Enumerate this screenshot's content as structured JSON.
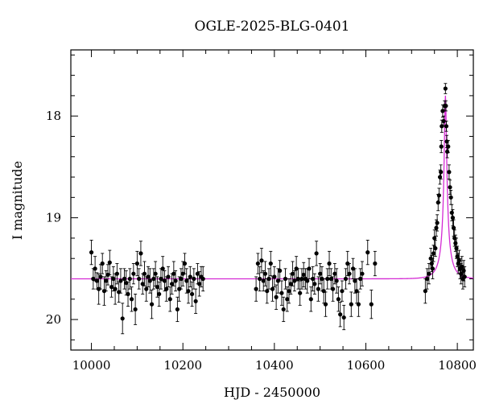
{
  "chart_data": {
    "type": "scatter",
    "title": "OGLE-2025-BLG-0401",
    "xlabel": "HJD - 2450000",
    "ylabel": "I magnitude",
    "xlim": [
      9955,
      10835
    ],
    "ylim": [
      20.3,
      17.35
    ],
    "y_inverted": true,
    "grid": false,
    "x_ticks": [
      10000,
      10200,
      10400,
      10600,
      10800
    ],
    "x_tick_labels": [
      "10000",
      "10200",
      "10400",
      "10600",
      "10800"
    ],
    "y_ticks": [
      18,
      19,
      20
    ],
    "y_tick_labels": [
      "18",
      "19",
      "20"
    ],
    "model_color": "#d42bd4",
    "point_color": "#000000",
    "model": {
      "name": "",
      "baseline": 19.6,
      "t0": 10774,
      "peak": 17.8,
      "tE": 24.4,
      "u0": 0.11
    },
    "series": [
      {
        "name": "",
        "points": [
          [
            10000,
            19.34,
            0.12
          ],
          [
            10004,
            19.6,
            0.1
          ],
          [
            10008,
            19.5,
            0.12
          ],
          [
            10012,
            19.62,
            0.08
          ],
          [
            10016,
            19.7,
            0.15
          ],
          [
            10020,
            19.58,
            0.12
          ],
          [
            10024,
            19.45,
            0.1
          ],
          [
            10028,
            19.72,
            0.14
          ],
          [
            10032,
            19.62,
            0.1
          ],
          [
            10036,
            19.56,
            0.1
          ],
          [
            10040,
            19.44,
            0.12
          ],
          [
            10044,
            19.68,
            0.1
          ],
          [
            10048,
            19.6,
            0.12
          ],
          [
            10052,
            19.7,
            0.15
          ],
          [
            10056,
            19.55,
            0.1
          ],
          [
            10060,
            19.73,
            0.1
          ],
          [
            10064,
            19.62,
            0.12
          ],
          [
            10068,
            19.99,
            0.15
          ],
          [
            10072,
            19.6,
            0.1
          ],
          [
            10076,
            19.64,
            0.12
          ],
          [
            10080,
            19.75,
            0.12
          ],
          [
            10084,
            19.6,
            0.1
          ],
          [
            10088,
            19.8,
            0.12
          ],
          [
            10092,
            19.55,
            0.1
          ],
          [
            10096,
            19.9,
            0.15
          ],
          [
            10100,
            19.45,
            0.12
          ],
          [
            10104,
            19.6,
            0.1
          ],
          [
            10108,
            19.35,
            0.12
          ],
          [
            10112,
            19.65,
            0.1
          ],
          [
            10116,
            19.55,
            0.12
          ],
          [
            10120,
            19.7,
            0.12
          ],
          [
            10124,
            19.58,
            0.1
          ],
          [
            10128,
            19.62,
            0.12
          ],
          [
            10132,
            19.85,
            0.14
          ],
          [
            10136,
            19.6,
            0.1
          ],
          [
            10140,
            19.55,
            0.12
          ],
          [
            10144,
            19.68,
            0.1
          ],
          [
            10148,
            19.75,
            0.12
          ],
          [
            10152,
            19.6,
            0.1
          ],
          [
            10156,
            19.5,
            0.12
          ],
          [
            10160,
            19.62,
            0.1
          ],
          [
            10164,
            19.7,
            0.12
          ],
          [
            10168,
            19.58,
            0.1
          ],
          [
            10172,
            19.8,
            0.12
          ],
          [
            10176,
            19.65,
            0.1
          ],
          [
            10180,
            19.55,
            0.12
          ],
          [
            10184,
            19.62,
            0.1
          ],
          [
            10188,
            19.9,
            0.12
          ],
          [
            10192,
            19.7,
            0.12
          ],
          [
            10196,
            19.6,
            0.1
          ],
          [
            10200,
            19.55,
            0.12
          ],
          [
            10204,
            19.45,
            0.1
          ],
          [
            10208,
            19.62,
            0.12
          ],
          [
            10212,
            19.72,
            0.12
          ],
          [
            10216,
            19.58,
            0.1
          ],
          [
            10220,
            19.75,
            0.12
          ],
          [
            10224,
            19.6,
            0.1
          ],
          [
            10228,
            19.82,
            0.12
          ],
          [
            10232,
            19.55,
            0.1
          ],
          [
            10236,
            19.65,
            0.12
          ],
          [
            10240,
            19.58,
            0.1
          ],
          [
            10244,
            19.6,
            0.12
          ],
          [
            10360,
            19.7,
            0.12
          ],
          [
            10364,
            19.45,
            0.1
          ],
          [
            10368,
            19.6,
            0.12
          ],
          [
            10372,
            19.42,
            0.12
          ],
          [
            10376,
            19.62,
            0.1
          ],
          [
            10380,
            19.55,
            0.12
          ],
          [
            10384,
            19.72,
            0.12
          ],
          [
            10388,
            19.6,
            0.1
          ],
          [
            10392,
            19.45,
            0.12
          ],
          [
            10396,
            19.7,
            0.12
          ],
          [
            10400,
            19.58,
            0.1
          ],
          [
            10404,
            19.78,
            0.12
          ],
          [
            10408,
            19.62,
            0.12
          ],
          [
            10412,
            19.52,
            0.1
          ],
          [
            10416,
            19.74,
            0.12
          ],
          [
            10420,
            19.9,
            0.12
          ],
          [
            10424,
            19.6,
            0.1
          ],
          [
            10428,
            19.8,
            0.12
          ],
          [
            10432,
            19.72,
            0.12
          ],
          [
            10436,
            19.65,
            0.1
          ],
          [
            10440,
            19.55,
            0.12
          ],
          [
            10444,
            19.62,
            0.1
          ],
          [
            10448,
            19.5,
            0.12
          ],
          [
            10452,
            19.6,
            0.1
          ],
          [
            10456,
            19.74,
            0.12
          ],
          [
            10460,
            19.6,
            0.1
          ],
          [
            10464,
            19.56,
            0.12
          ],
          [
            10468,
            19.6,
            0.1
          ],
          [
            10472,
            19.62,
            0.12
          ],
          [
            10476,
            19.5,
            0.1
          ],
          [
            10480,
            19.8,
            0.12
          ],
          [
            10484,
            19.6,
            0.12
          ],
          [
            10488,
            19.65,
            0.1
          ],
          [
            10492,
            19.35,
            0.12
          ],
          [
            10496,
            19.7,
            0.12
          ],
          [
            10500,
            19.55,
            0.1
          ],
          [
            10504,
            19.6,
            0.12
          ],
          [
            10508,
            19.72,
            0.12
          ],
          [
            10512,
            19.85,
            0.12
          ],
          [
            10516,
            19.6,
            0.1
          ],
          [
            10520,
            19.45,
            0.12
          ],
          [
            10524,
            19.6,
            0.1
          ],
          [
            10528,
            19.7,
            0.12
          ],
          [
            10532,
            19.55,
            0.1
          ],
          [
            10536,
            19.62,
            0.12
          ],
          [
            10540,
            19.8,
            0.12
          ],
          [
            10544,
            19.95,
            0.12
          ],
          [
            10548,
            19.72,
            0.1
          ],
          [
            10552,
            19.98,
            0.12
          ],
          [
            10556,
            19.6,
            0.1
          ],
          [
            10560,
            19.45,
            0.12
          ],
          [
            10564,
            19.55,
            0.1
          ],
          [
            10568,
            19.85,
            0.12
          ],
          [
            10572,
            19.5,
            0.1
          ],
          [
            10576,
            19.62,
            0.12
          ],
          [
            10580,
            19.72,
            0.12
          ],
          [
            10584,
            19.85,
            0.12
          ],
          [
            10588,
            19.6,
            0.1
          ],
          [
            10592,
            19.55,
            0.12
          ],
          [
            10604,
            19.34,
            0.12
          ],
          [
            10612,
            19.85,
            0.14
          ],
          [
            10620,
            19.45,
            0.12
          ],
          [
            10730,
            19.72,
            0.12
          ],
          [
            10734,
            19.6,
            0.1
          ],
          [
            10738,
            19.55,
            0.1
          ],
          [
            10742,
            19.4,
            0.1
          ],
          [
            10744,
            19.45,
            0.08
          ],
          [
            10746,
            19.5,
            0.1
          ],
          [
            10748,
            19.35,
            0.08
          ],
          [
            10750,
            19.2,
            0.08
          ],
          [
            10752,
            19.3,
            0.08
          ],
          [
            10754,
            19.1,
            0.08
          ],
          [
            10756,
            19.05,
            0.08
          ],
          [
            10758,
            18.85,
            0.08
          ],
          [
            10760,
            18.78,
            0.07
          ],
          [
            10762,
            18.6,
            0.07
          ],
          [
            10764,
            18.55,
            0.07
          ],
          [
            10765,
            18.3,
            0.06
          ],
          [
            10766,
            18.1,
            0.06
          ],
          [
            10768,
            17.95,
            0.06
          ],
          [
            10770,
            18.05,
            0.05
          ],
          [
            10772,
            17.9,
            0.05
          ],
          [
            10774,
            17.73,
            0.05
          ],
          [
            10775,
            17.9,
            0.05
          ],
          [
            10776,
            18.1,
            0.05
          ],
          [
            10777,
            18.25,
            0.06
          ],
          [
            10778,
            18.35,
            0.06
          ],
          [
            10780,
            18.3,
            0.06
          ],
          [
            10782,
            18.55,
            0.07
          ],
          [
            10784,
            18.7,
            0.07
          ],
          [
            10786,
            18.8,
            0.07
          ],
          [
            10788,
            18.95,
            0.08
          ],
          [
            10790,
            19.0,
            0.08
          ],
          [
            10792,
            19.1,
            0.08
          ],
          [
            10794,
            19.2,
            0.08
          ],
          [
            10796,
            19.25,
            0.08
          ],
          [
            10798,
            19.3,
            0.1
          ],
          [
            10800,
            19.38,
            0.1
          ],
          [
            10802,
            19.45,
            0.1
          ],
          [
            10804,
            19.42,
            0.1
          ],
          [
            10806,
            19.5,
            0.1
          ],
          [
            10808,
            19.55,
            0.1
          ],
          [
            10810,
            19.48,
            0.1
          ],
          [
            10812,
            19.6,
            0.1
          ],
          [
            10814,
            19.52,
            0.1
          ],
          [
            10816,
            19.58,
            0.1
          ]
        ]
      }
    ]
  }
}
